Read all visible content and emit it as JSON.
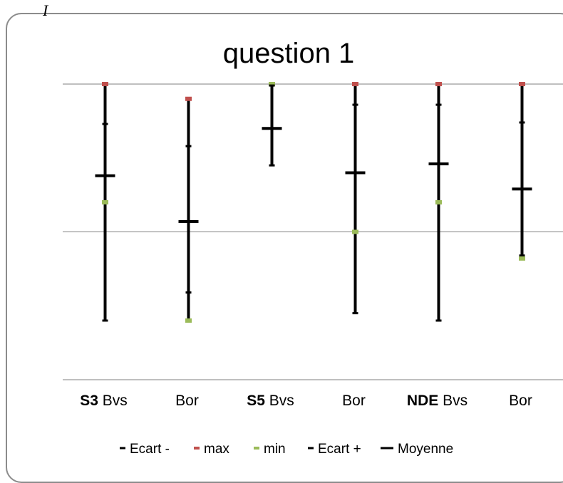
{
  "corner_mark": "I",
  "chart_data": {
    "type": "stock",
    "title": "question 1",
    "categories": [
      {
        "bold": "S3",
        "rest": " Bvs"
      },
      {
        "bold": "",
        "rest": "Bor"
      },
      {
        "bold": "S5",
        "rest": " Bvs"
      },
      {
        "bold": "",
        "rest": "Bor"
      },
      {
        "bold": "NDE",
        "rest": " Bvs"
      },
      {
        "bold": "",
        "rest": "Bor"
      }
    ],
    "ylim": [
      0,
      2
    ],
    "grid": true,
    "series": [
      {
        "name": "Ecart -",
        "color": "#000000",
        "values": [
          0.4,
          0.59,
          1.45,
          0.45,
          0.4,
          0.84
        ]
      },
      {
        "name": "max",
        "color": "#c0504d",
        "values": [
          2.0,
          1.9,
          2.0,
          2.0,
          2.0,
          2.0
        ]
      },
      {
        "name": "min",
        "color": "#9bbb59",
        "values": [
          1.2,
          0.4,
          2.0,
          1.0,
          1.2,
          0.82
        ]
      },
      {
        "name": "Ecart +",
        "color": "#000000",
        "values": [
          1.73,
          1.58,
          1.99,
          1.86,
          1.86,
          1.74
        ]
      },
      {
        "name": "Moyenne",
        "color": "#000000",
        "values": [
          1.38,
          1.07,
          1.7,
          1.4,
          1.46,
          1.29
        ]
      }
    ]
  }
}
